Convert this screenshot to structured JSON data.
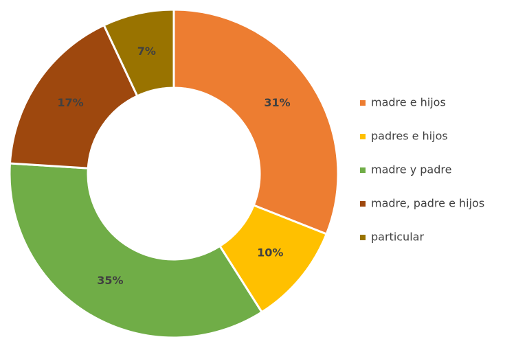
{
  "chart_data": {
    "type": "donut",
    "categories": [
      "madre e hijos",
      "padres e hijos",
      "madre y padre",
      "madre, padre e hijos",
      "particular"
    ],
    "values": [
      31,
      10,
      35,
      17,
      7
    ],
    "value_labels": [
      "31%",
      "10%",
      "35%",
      "17%",
      "7%"
    ],
    "colors": [
      "#ED7D31",
      "#FFC000",
      "#70AD47",
      "#9E480E",
      "#997300"
    ],
    "legend": "right"
  }
}
